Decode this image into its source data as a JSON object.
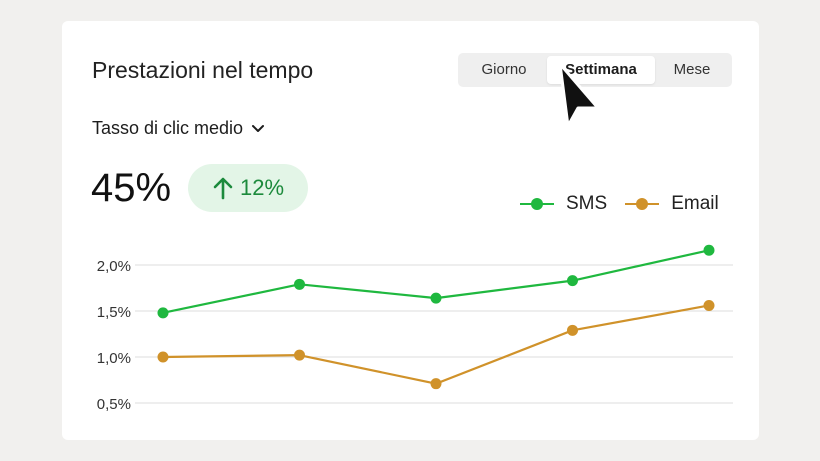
{
  "card": {
    "title": "Prestazioni nel tempo",
    "tabs": [
      "Giorno",
      "Settimana",
      "Mese"
    ],
    "selected_tab": "Settimana",
    "metric_label": "Tasso di clic medio",
    "big_value": "45%",
    "change": "12%"
  },
  "chart_data": {
    "type": "line",
    "x": [
      1,
      2,
      3,
      4,
      5
    ],
    "ylim": [
      0.5,
      2.0
    ],
    "yticks": [
      "2,0%",
      "1,5%",
      "1,0%",
      "0,5%"
    ],
    "ytick_values": [
      2.0,
      1.5,
      1.0,
      0.5
    ],
    "grid": true,
    "legend": "top-right",
    "series": [
      {
        "name": "SMS",
        "color": "#1fb83f",
        "values": [
          1.48,
          1.79,
          1.64,
          1.83,
          2.16
        ]
      },
      {
        "name": "Email",
        "color": "#d0922a",
        "values": [
          1.0,
          1.02,
          0.71,
          1.29,
          1.56
        ]
      }
    ]
  },
  "icons": {
    "tab_cursor": "mouse-pointer-icon",
    "dropdown": "chevron-down-icon",
    "trend": "arrow-up-icon"
  }
}
